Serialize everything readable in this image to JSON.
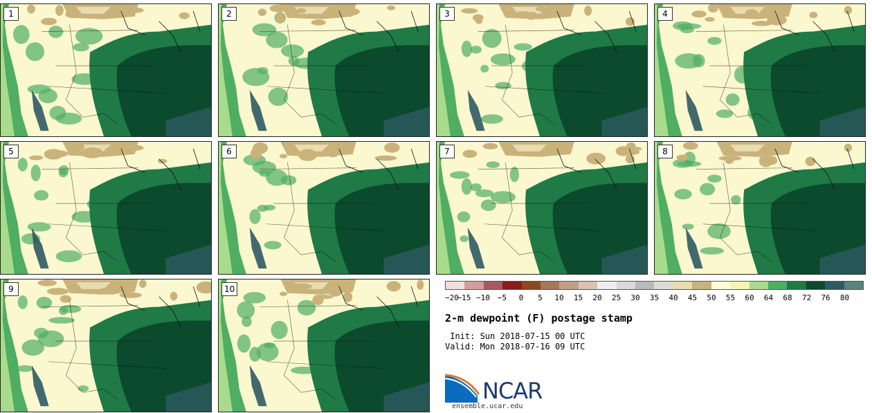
{
  "panels": [
    {
      "label": "1"
    },
    {
      "label": "2"
    },
    {
      "label": "3"
    },
    {
      "label": "4"
    },
    {
      "label": "5"
    },
    {
      "label": "6"
    },
    {
      "label": "7"
    },
    {
      "label": "8"
    },
    {
      "label": "9"
    },
    {
      "label": "10"
    }
  ],
  "colorbar": {
    "ticks": [
      "−20",
      "−15",
      "−10",
      "−5",
      "0",
      "5",
      "10",
      "15",
      "20",
      "25",
      "30",
      "35",
      "40",
      "45",
      "50",
      "55",
      "60",
      "64",
      "68",
      "72",
      "76",
      "80"
    ],
    "colors": [
      "#f3dede",
      "#d09ea1",
      "#a85a60",
      "#8c1a1e",
      "#8c4a1c",
      "#a8765a",
      "#c49e82",
      "#d8c2b0",
      "#eeeeee",
      "#d9d9d9",
      "#bababa",
      "#dcdcd2",
      "#e8dcb0",
      "#c9b37a",
      "#fffcdc",
      "#f3f5b0",
      "#a9db8c",
      "#4fae62",
      "#1f7a46",
      "#0b4a2c",
      "#2d5a63",
      "#5a8480"
    ]
  },
  "title": "2-m dewpoint (F) postage stamp",
  "init": " Init: Sun 2018-07-15 00 UTC",
  "valid": "Valid: Mon 2018-07-16 09 UTC",
  "logo": {
    "text": "NCAR",
    "url_text": "ensemble.ucar.edu"
  }
}
